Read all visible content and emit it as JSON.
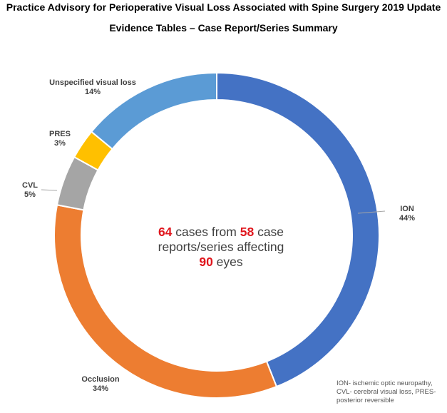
{
  "title_line1": "Practice Advisory for Perioperative Visual Loss Associated with Spine Surgery 2019 Update",
  "title_line2": "Evidence Tables – Case Report/Series Summary",
  "center": {
    "n_cases": "64",
    "t1": " cases from ",
    "n_reports": "58",
    "t2": " case",
    "t3": "reports/series affecting",
    "n_eyes": "90",
    "t4": " eyes"
  },
  "footnote": {
    "l1": "ION- ischemic optic neuropathy,",
    "l2": "CVL- cerebral visual loss, PRES-",
    "l3": "posterior reversible"
  },
  "chart_data": {
    "type": "pie",
    "variant": "donut",
    "categories": [
      "ION",
      "Occlusion",
      "CVL",
      "PRES",
      "Unspecified visual loss"
    ],
    "values": [
      44,
      34,
      5,
      3,
      14
    ],
    "unit": "%",
    "labels": [
      {
        "name": "ION",
        "pct": "44%"
      },
      {
        "name": "Occlusion",
        "pct": "34%"
      },
      {
        "name": "CVL",
        "pct": "5%"
      },
      {
        "name": "PRES",
        "pct": "3%"
      },
      {
        "name": "Unspecified visual loss",
        "pct": "14%"
      }
    ],
    "colors": [
      "#4472c4",
      "#ed7d31",
      "#a5a5a5",
      "#ffc000",
      "#5b9bd5"
    ]
  }
}
